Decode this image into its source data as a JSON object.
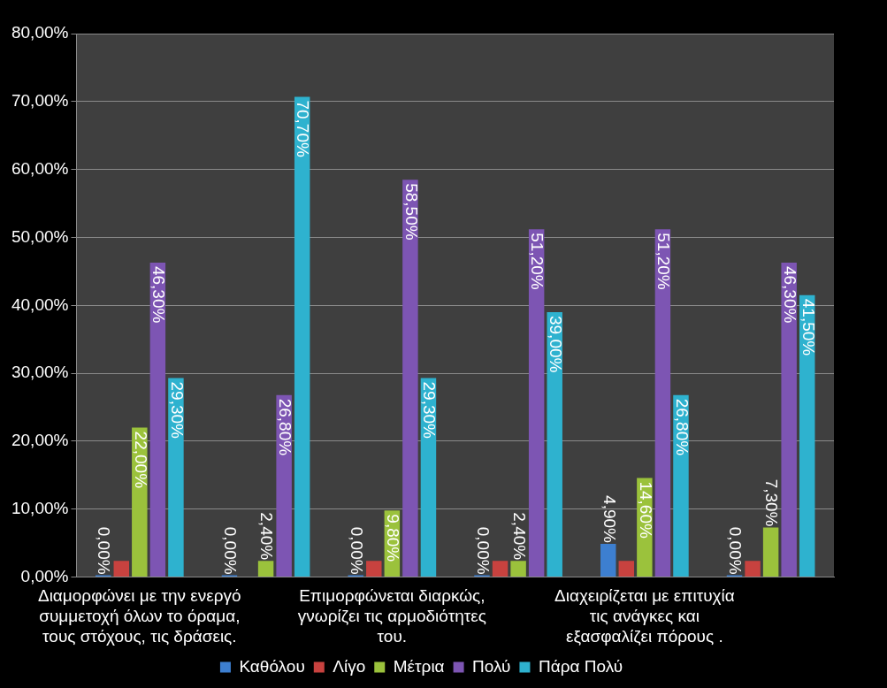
{
  "chart_data": {
    "type": "bar",
    "categories": [
      "Διαμορφώνει με την ενεργό συμμετοχή όλων το όραμα, τους στόχους, τις δράσεις.",
      null,
      "Επιμορφώνεται διαρκώς, γνωρίζει τις αρμοδιότητες του.",
      null,
      "Διαχειρίζεται με επιτυχία τις ανάγκες και εξασφαλίζει πόρους .",
      null
    ],
    "series": [
      {
        "name": "Καθόλου",
        "color": "#3d7fd0",
        "values": [
          0,
          0,
          0,
          0,
          4.9,
          0
        ],
        "value_labels": [
          "0,00%",
          "0,00%",
          "0,00%",
          "0,00%",
          "4,90%",
          "0,00%"
        ]
      },
      {
        "name": "Λίγο",
        "color": "#c8423f",
        "values": [
          2.4,
          0,
          2.4,
          2.4,
          2.4,
          2.4
        ],
        "value_labels": [
          null,
          null,
          null,
          null,
          null,
          null
        ]
      },
      {
        "name": "Μέτρια",
        "color": "#9bc23c",
        "values": [
          22,
          2.4,
          9.8,
          2.4,
          14.6,
          7.3
        ],
        "value_labels": [
          "22,00%",
          "2,40%",
          "9,80%",
          "2,40%",
          "14,60%",
          "7,30%"
        ]
      },
      {
        "name": "Πολύ",
        "color": "#7d55b3",
        "values": [
          46.3,
          26.8,
          58.5,
          51.2,
          51.2,
          46.3
        ],
        "value_labels": [
          "46,30%",
          "26,80%",
          "58,50%",
          "51,20%",
          "51,20%",
          "46,30%"
        ]
      },
      {
        "name": "Πάρα Πολύ",
        "color": "#2eb2cf",
        "values": [
          29.3,
          70.7,
          29.3,
          39,
          26.8,
          41.5
        ],
        "value_labels": [
          "29,30%",
          "70,70%",
          "29,30%",
          "39,00%",
          "26,80%",
          "41,50%"
        ]
      }
    ],
    "ylim": [
      0,
      80
    ],
    "yticks": [
      {
        "value": 0,
        "label": "0,00%"
      },
      {
        "value": 10,
        "label": "10,00%"
      },
      {
        "value": 20,
        "label": "20,00%"
      },
      {
        "value": 30,
        "label": "30,00%"
      },
      {
        "value": 40,
        "label": "40,00%"
      },
      {
        "value": 50,
        "label": "50,00%"
      },
      {
        "value": 60,
        "label": "60,00%"
      },
      {
        "value": 70,
        "label": "70,00%"
      },
      {
        "value": 80,
        "label": "80,00%"
      }
    ],
    "grid": "y",
    "legend": "bottom"
  }
}
